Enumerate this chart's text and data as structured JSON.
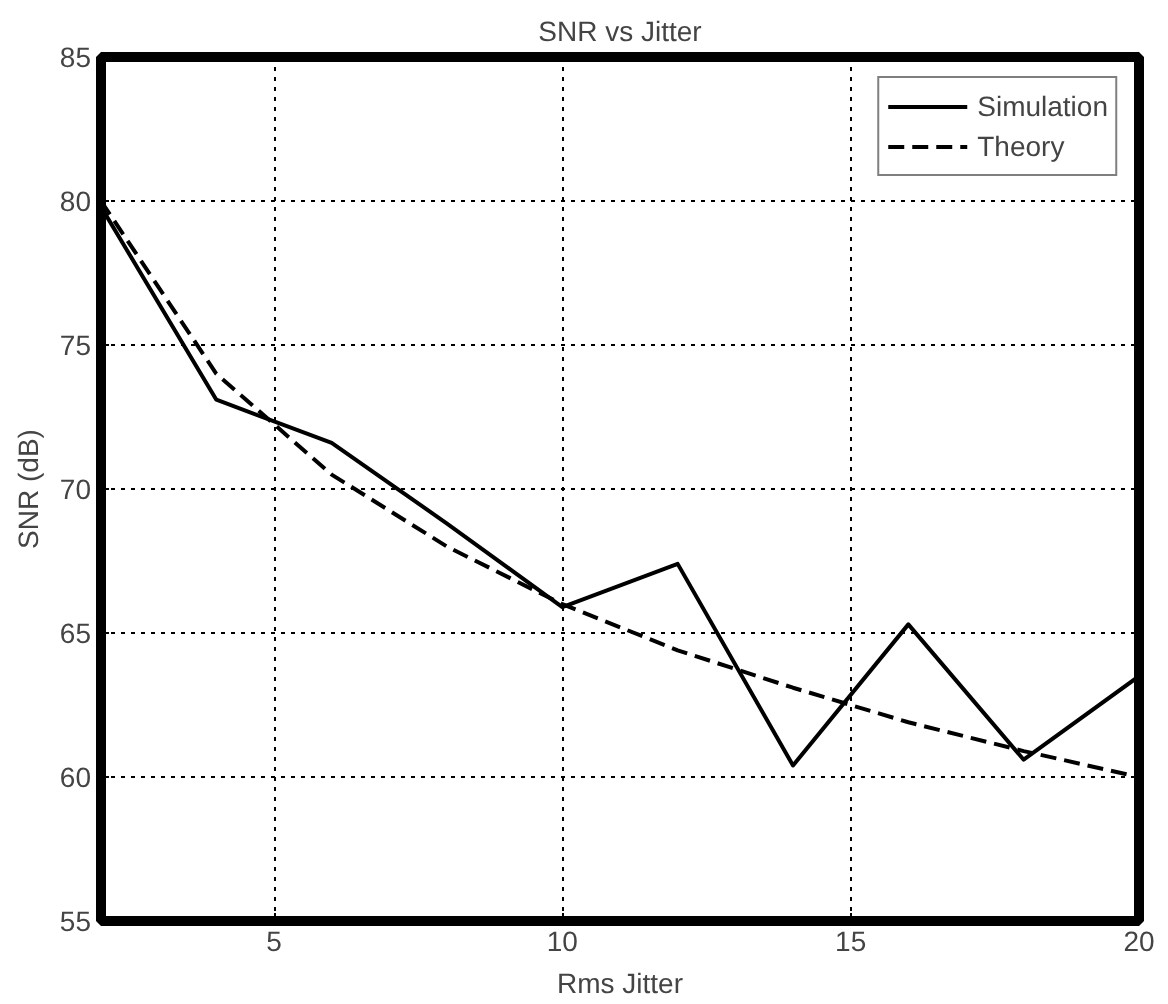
{
  "chart_data": {
    "type": "line",
    "title": "SNR vs Jitter",
    "xlabel": "Rms Jitter",
    "ylabel": "SNR (dB)",
    "x": [
      2,
      4,
      6,
      8,
      10,
      12,
      14,
      16,
      18,
      20
    ],
    "series": [
      {
        "name": "Simulation",
        "color": "#000000",
        "line_style": "solid",
        "values": [
          79.8,
          73.1,
          71.6,
          68.8,
          65.9,
          67.4,
          60.4,
          65.3,
          60.6,
          63.5
        ]
      },
      {
        "name": "Theory",
        "color": "#000000",
        "line_style": "dashed",
        "values": [
          80,
          74,
          70.5,
          68,
          66,
          64.4,
          63.1,
          61.9,
          60.9,
          60
        ]
      }
    ],
    "xlim": [
      2,
      20
    ],
    "ylim": [
      55,
      85
    ],
    "xticks": [
      5,
      10,
      15,
      20
    ],
    "yticks": [
      55,
      60,
      65,
      70,
      75,
      80,
      85
    ],
    "grid": true,
    "legend": "top right",
    "marker": "none"
  }
}
